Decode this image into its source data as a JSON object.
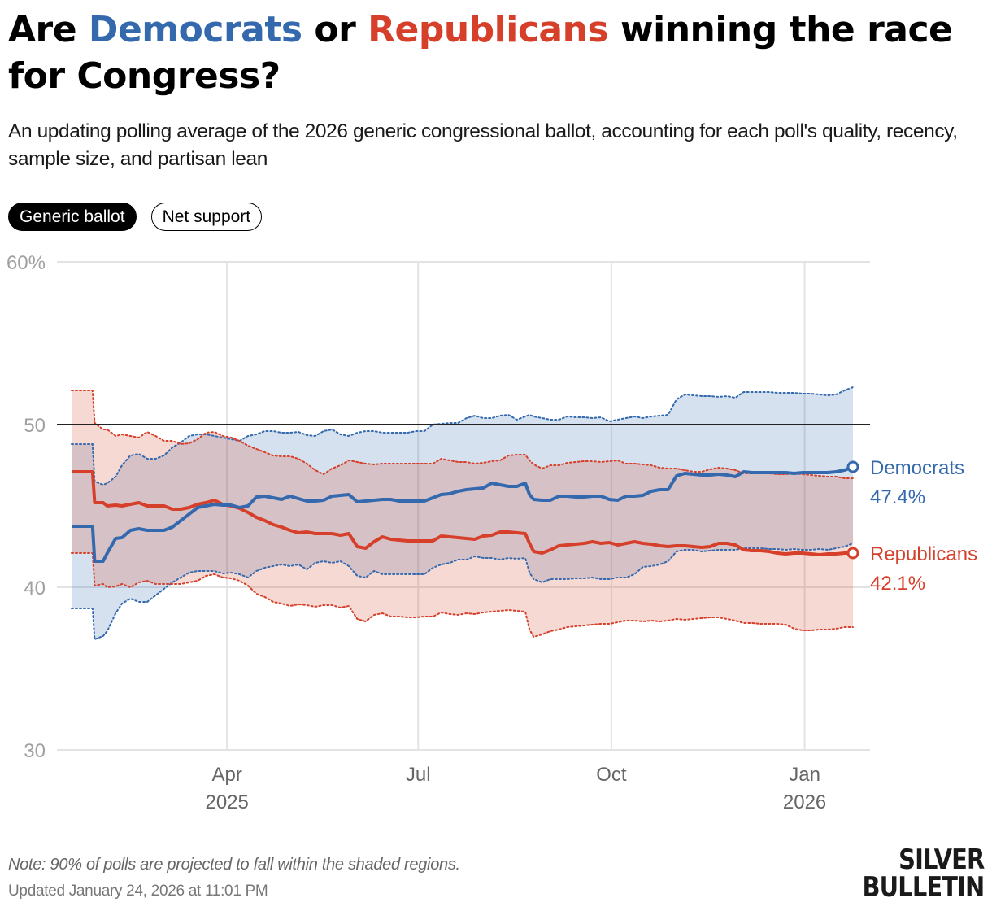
{
  "header": {
    "title_parts": [
      "Are ",
      "Democrats",
      " or ",
      "Republicans",
      " winning the race for Congress?"
    ],
    "subtitle": "An updating polling average of the 2026 generic congressional ballot, accounting for each poll's quality, recency, sample size, and partisan lean"
  },
  "tabs": [
    {
      "label": "Generic ballot",
      "active": true
    },
    {
      "label": "Net support",
      "active": false
    }
  ],
  "colors": {
    "dem": "#3469ae",
    "rep": "#d63f2a",
    "dem_band": "#d6e0ec",
    "rep_band": "#f5d6d1",
    "overlap": "#cdc0ca"
  },
  "chart_data": {
    "type": "line",
    "title": "Generic congressional ballot polling average",
    "xlabel": "",
    "ylabel": "",
    "ylim": [
      30,
      60
    ],
    "y_ticks": [
      {
        "value": 60,
        "label": "60%"
      },
      {
        "value": 50,
        "label": "50"
      },
      {
        "value": 40,
        "label": "40"
      },
      {
        "value": 30,
        "label": "30"
      }
    ],
    "x_unit": "days since 2025-01-01",
    "xlim": [
      16,
      388
    ],
    "x_ticks": [
      {
        "value": 90,
        "label": "Apr",
        "sublabel": "2025"
      },
      {
        "value": 181,
        "label": "Jul",
        "sublabel": ""
      },
      {
        "value": 273,
        "label": "Oct",
        "sublabel": ""
      },
      {
        "value": 365,
        "label": "Jan",
        "sublabel": "2026"
      }
    ],
    "reference_line": 50,
    "grid": true,
    "band_note": "90% of polls projected to fall within shaded regions",
    "x": [
      16,
      26,
      27,
      31,
      33,
      37,
      40,
      44,
      48,
      52,
      56,
      60,
      64,
      68,
      72,
      76,
      80,
      84,
      88,
      92,
      96,
      100,
      104,
      108,
      112,
      116,
      120,
      124,
      128,
      132,
      136,
      140,
      144,
      148,
      152,
      156,
      160,
      164,
      168,
      172,
      176,
      180,
      184,
      188,
      192,
      196,
      200,
      204,
      208,
      212,
      216,
      220,
      224,
      228,
      232,
      234,
      236,
      240,
      244,
      248,
      252,
      256,
      260,
      264,
      268,
      272,
      276,
      280,
      284,
      288,
      292,
      296,
      300,
      304,
      308,
      312,
      316,
      320,
      324,
      328,
      332,
      336,
      340,
      344,
      348,
      352,
      356,
      360,
      364,
      368,
      372,
      376,
      380,
      384,
      388
    ],
    "series": [
      {
        "name": "Democrats",
        "key": "dem",
        "final_label": "47.4%",
        "values": [
          43.75,
          43.75,
          41.6,
          41.6,
          42.1,
          43.0,
          43.05,
          43.5,
          43.6,
          43.5,
          43.5,
          43.5,
          43.7,
          44.1,
          44.5,
          44.9,
          45.0,
          45.1,
          45.05,
          45.05,
          44.9,
          45.0,
          45.55,
          45.6,
          45.5,
          45.4,
          45.6,
          45.45,
          45.3,
          45.3,
          45.35,
          45.6,
          45.65,
          45.7,
          45.25,
          45.3,
          45.35,
          45.4,
          45.4,
          45.3,
          45.3,
          45.3,
          45.3,
          45.5,
          45.7,
          45.75,
          45.9,
          46.0,
          46.05,
          46.1,
          46.4,
          46.3,
          46.2,
          46.2,
          46.4,
          45.7,
          45.4,
          45.35,
          45.35,
          45.6,
          45.6,
          45.55,
          45.55,
          45.6,
          45.6,
          45.4,
          45.35,
          45.6,
          45.6,
          45.65,
          45.9,
          46.0,
          46.0,
          46.85,
          47.0,
          46.95,
          46.9,
          46.9,
          46.95,
          46.9,
          46.8,
          47.1,
          47.05,
          47.05,
          47.05,
          47.05,
          47.05,
          47.0,
          47.05,
          47.05,
          47.05,
          47.05,
          47.1,
          47.2,
          47.4
        ]
      },
      {
        "name": "Democrats upper",
        "key": "dem_hi",
        "values": [
          48.8,
          48.8,
          46.5,
          46.3,
          46.4,
          46.8,
          47.5,
          48.1,
          48.2,
          47.9,
          47.9,
          48.1,
          48.6,
          48.9,
          49.3,
          49.4,
          49.4,
          49.3,
          49.2,
          49.1,
          49.0,
          49.3,
          49.4,
          49.6,
          49.6,
          49.5,
          49.5,
          49.55,
          49.35,
          49.3,
          49.6,
          49.7,
          49.4,
          49.3,
          49.5,
          49.6,
          49.6,
          49.5,
          49.5,
          49.5,
          49.5,
          49.6,
          49.6,
          50.0,
          50.05,
          50.1,
          50.1,
          50.4,
          50.55,
          50.4,
          50.4,
          50.55,
          50.6,
          50.3,
          50.5,
          50.6,
          50.5,
          50.4,
          50.3,
          50.3,
          50.5,
          50.45,
          50.45,
          50.4,
          50.45,
          50.2,
          50.3,
          50.4,
          50.5,
          50.4,
          50.5,
          50.55,
          50.6,
          51.55,
          51.85,
          51.8,
          51.75,
          51.75,
          51.7,
          51.75,
          51.65,
          52.0,
          52.0,
          52.0,
          52.0,
          51.95,
          51.95,
          51.95,
          51.9,
          51.9,
          51.85,
          51.8,
          51.85,
          52.1,
          52.3
        ]
      },
      {
        "name": "Democrats lower",
        "key": "dem_lo",
        "values": [
          38.7,
          38.7,
          36.8,
          37.0,
          37.3,
          38.4,
          39.0,
          39.3,
          39.1,
          39.1,
          39.5,
          39.9,
          40.3,
          40.6,
          40.9,
          41.0,
          41.0,
          41.0,
          40.85,
          40.9,
          40.8,
          40.6,
          41.0,
          41.2,
          41.3,
          41.4,
          41.3,
          41.4,
          41.1,
          41.5,
          41.6,
          41.5,
          41.6,
          41.3,
          40.7,
          40.6,
          41.0,
          40.8,
          40.8,
          40.8,
          40.8,
          40.8,
          40.8,
          41.2,
          41.4,
          41.5,
          41.7,
          41.7,
          41.9,
          41.8,
          41.8,
          41.7,
          41.8,
          41.75,
          41.8,
          40.9,
          40.5,
          40.3,
          40.5,
          40.5,
          40.5,
          40.55,
          40.55,
          40.6,
          40.5,
          40.5,
          40.6,
          40.6,
          40.8,
          41.25,
          41.3,
          41.4,
          41.6,
          42.2,
          42.3,
          42.3,
          42.2,
          42.25,
          42.3,
          42.3,
          42.3,
          42.4,
          42.4,
          42.4,
          42.35,
          42.35,
          42.3,
          42.35,
          42.3,
          42.3,
          42.35,
          42.3,
          42.4,
          42.5,
          42.7
        ]
      },
      {
        "name": "Republicans",
        "key": "rep",
        "final_label": "42.1%",
        "values": [
          47.1,
          47.1,
          45.2,
          45.2,
          45.0,
          45.05,
          45.0,
          45.1,
          45.2,
          45.0,
          45.0,
          45.0,
          44.8,
          44.8,
          44.9,
          45.1,
          45.2,
          45.35,
          45.1,
          45.0,
          44.85,
          44.6,
          44.3,
          44.1,
          43.85,
          43.7,
          43.5,
          43.35,
          43.4,
          43.3,
          43.3,
          43.3,
          43.2,
          43.3,
          42.5,
          42.4,
          42.8,
          43.1,
          42.95,
          42.9,
          42.85,
          42.85,
          42.85,
          42.85,
          43.15,
          43.1,
          43.05,
          43.0,
          42.95,
          43.15,
          43.2,
          43.4,
          43.4,
          43.35,
          43.3,
          42.7,
          42.2,
          42.1,
          42.3,
          42.55,
          42.6,
          42.65,
          42.7,
          42.8,
          42.7,
          42.75,
          42.6,
          42.7,
          42.8,
          42.7,
          42.65,
          42.55,
          42.5,
          42.55,
          42.55,
          42.5,
          42.45,
          42.5,
          42.7,
          42.7,
          42.6,
          42.3,
          42.25,
          42.25,
          42.2,
          42.1,
          42.05,
          42.1,
          42.1,
          42.05,
          42.0,
          42.05,
          42.05,
          42.1,
          42.1
        ]
      },
      {
        "name": "Republicans upper",
        "key": "rep_hi",
        "values": [
          52.1,
          52.1,
          50.1,
          49.7,
          49.7,
          49.3,
          49.4,
          49.3,
          49.2,
          49.55,
          49.3,
          49.0,
          49.0,
          48.8,
          48.85,
          49.1,
          49.5,
          49.55,
          49.3,
          49.2,
          49.0,
          48.7,
          48.5,
          48.3,
          48.1,
          48.05,
          48.05,
          47.9,
          47.6,
          47.2,
          46.95,
          47.3,
          47.5,
          47.8,
          47.7,
          47.6,
          47.55,
          47.6,
          47.6,
          47.6,
          47.6,
          47.6,
          47.6,
          47.6,
          47.9,
          47.8,
          47.7,
          47.7,
          47.6,
          47.65,
          47.75,
          47.8,
          48.1,
          48.15,
          48.15,
          47.8,
          47.55,
          47.3,
          47.5,
          47.5,
          47.65,
          47.7,
          47.75,
          47.75,
          47.7,
          47.75,
          47.8,
          47.6,
          47.6,
          47.55,
          47.5,
          47.35,
          47.3,
          47.3,
          47.2,
          47.1,
          47.1,
          47.25,
          47.35,
          47.3,
          47.2,
          47.0,
          47.0,
          47.0,
          47.0,
          46.95,
          46.95,
          47.0,
          46.95,
          46.9,
          46.85,
          46.8,
          46.8,
          46.7,
          46.7
        ]
      },
      {
        "name": "Republicans lower",
        "key": "rep_lo",
        "values": [
          42.1,
          42.1,
          40.1,
          40.2,
          40.0,
          40.05,
          40.2,
          40.0,
          40.3,
          40.4,
          40.2,
          40.2,
          40.2,
          40.2,
          40.3,
          40.4,
          40.7,
          40.8,
          40.6,
          40.55,
          40.4,
          40.1,
          39.6,
          39.4,
          39.1,
          39.0,
          38.85,
          38.95,
          38.9,
          38.8,
          38.9,
          38.9,
          38.75,
          38.85,
          38.05,
          37.9,
          38.3,
          38.4,
          38.2,
          38.2,
          38.15,
          38.15,
          38.2,
          38.2,
          38.45,
          38.35,
          38.3,
          38.4,
          38.35,
          38.45,
          38.5,
          38.55,
          38.6,
          38.55,
          38.5,
          37.4,
          36.95,
          37.1,
          37.3,
          37.4,
          37.55,
          37.6,
          37.65,
          37.7,
          37.75,
          37.75,
          37.85,
          37.95,
          37.95,
          37.9,
          37.95,
          37.9,
          37.95,
          38.05,
          38.0,
          38.05,
          38.1,
          38.15,
          38.15,
          38.05,
          37.95,
          37.8,
          37.8,
          37.75,
          37.75,
          37.75,
          37.7,
          37.45,
          37.35,
          37.35,
          37.4,
          37.4,
          37.45,
          37.55,
          37.55
        ]
      }
    ]
  },
  "legend": {
    "dem_name": "Democrats",
    "dem_value": "47.4%",
    "rep_name": "Republicans",
    "rep_value": "42.1%"
  },
  "footer": {
    "note": "Note: 90% of polls are projected to fall within the shaded regions.",
    "updated": "Updated January 24, 2026 at 11:01 PM",
    "logo_line1": "SILVER",
    "logo_line2": "BULLETIN"
  }
}
